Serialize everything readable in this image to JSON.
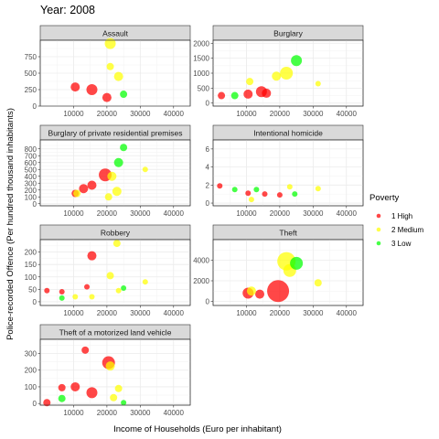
{
  "chart_data": {
    "type": "scatter",
    "title": "Year: 2008",
    "xlabel": "Income of Households (Euro per inhabitant)",
    "ylabel": "Police-recorded Offence (Per hundred thousand inhabitants)",
    "xlim": [
      0,
      45000
    ],
    "x_ticks": [
      10000,
      20000,
      30000,
      40000
    ],
    "grid": true,
    "legend": {
      "title": "Poverty",
      "position": "right",
      "entries": [
        {
          "key": "1",
          "label": "1 High",
          "color": "#ff0000"
        },
        {
          "key": "2",
          "label": "2 Medium",
          "color": "#ffff00"
        },
        {
          "key": "3",
          "label": "3 Low",
          "color": "#00ff00"
        }
      ]
    },
    "panels": [
      {
        "name": "Assault",
        "ylim": [
          0,
          1000
        ],
        "y_ticks": [
          0,
          250,
          500,
          750
        ],
        "points": [
          {
            "x": 10500,
            "y": 290,
            "group": "1",
            "size": 5
          },
          {
            "x": 15500,
            "y": 250,
            "group": "1",
            "size": 6
          },
          {
            "x": 20000,
            "y": 130,
            "group": "1",
            "size": 5
          },
          {
            "x": 21000,
            "y": 950,
            "group": "2",
            "size": 6
          },
          {
            "x": 21000,
            "y": 600,
            "group": "2",
            "size": 4
          },
          {
            "x": 23500,
            "y": 450,
            "group": "2",
            "size": 5
          },
          {
            "x": 25000,
            "y": 180,
            "group": "3",
            "size": 4
          }
        ]
      },
      {
        "name": "Burglary",
        "ylim": [
          -100,
          2100
        ],
        "y_ticks": [
          0,
          500,
          1000,
          1500,
          2000
        ],
        "points": [
          {
            "x": 2500,
            "y": 250,
            "group": "1",
            "size": 4
          },
          {
            "x": 10500,
            "y": 300,
            "group": "1",
            "size": 5
          },
          {
            "x": 14500,
            "y": 380,
            "group": "1",
            "size": 6
          },
          {
            "x": 16000,
            "y": 330,
            "group": "1",
            "size": 5
          },
          {
            "x": 11000,
            "y": 720,
            "group": "2",
            "size": 4
          },
          {
            "x": 19000,
            "y": 900,
            "group": "2",
            "size": 5
          },
          {
            "x": 22000,
            "y": 1000,
            "group": "2",
            "size": 7
          },
          {
            "x": 31500,
            "y": 650,
            "group": "2",
            "size": 3
          },
          {
            "x": 6500,
            "y": 250,
            "group": "3",
            "size": 4
          },
          {
            "x": 25000,
            "y": 1420,
            "group": "3",
            "size": 6
          }
        ]
      },
      {
        "name": "Burglary of private residential premises",
        "ylim": [
          -30,
          930
        ],
        "y_ticks": [
          0,
          100,
          200,
          300,
          400,
          500,
          600,
          700,
          800
        ],
        "points": [
          {
            "x": 10500,
            "y": 150,
            "group": "1",
            "size": 4
          },
          {
            "x": 13000,
            "y": 220,
            "group": "1",
            "size": 5
          },
          {
            "x": 15500,
            "y": 270,
            "group": "1",
            "size": 5
          },
          {
            "x": 19500,
            "y": 420,
            "group": "1",
            "size": 7
          },
          {
            "x": 11000,
            "y": 150,
            "group": "2",
            "size": 4
          },
          {
            "x": 20500,
            "y": 100,
            "group": "2",
            "size": 4
          },
          {
            "x": 21500,
            "y": 400,
            "group": "2",
            "size": 5
          },
          {
            "x": 23000,
            "y": 180,
            "group": "2",
            "size": 5
          },
          {
            "x": 31500,
            "y": 500,
            "group": "2",
            "size": 3
          },
          {
            "x": 23500,
            "y": 600,
            "group": "3",
            "size": 5
          },
          {
            "x": 25000,
            "y": 820,
            "group": "3",
            "size": 4
          }
        ]
      },
      {
        "name": "Intentional homicide",
        "ylim": [
          -0.3,
          7
        ],
        "y_ticks": [
          0,
          2,
          4,
          6
        ],
        "points": [
          {
            "x": 2000,
            "y": 1.9,
            "group": "1",
            "size": 3
          },
          {
            "x": 10500,
            "y": 1.1,
            "group": "1",
            "size": 3
          },
          {
            "x": 15500,
            "y": 1.0,
            "group": "1",
            "size": 3
          },
          {
            "x": 20000,
            "y": 0.9,
            "group": "1",
            "size": 3
          },
          {
            "x": 11500,
            "y": 0.4,
            "group": "2",
            "size": 3
          },
          {
            "x": 23000,
            "y": 1.8,
            "group": "2",
            "size": 3
          },
          {
            "x": 31500,
            "y": 1.6,
            "group": "2",
            "size": 3
          },
          {
            "x": 6500,
            "y": 1.5,
            "group": "3",
            "size": 3
          },
          {
            "x": 13000,
            "y": 1.5,
            "group": "3",
            "size": 3
          },
          {
            "x": 24500,
            "y": 1.0,
            "group": "3",
            "size": 3
          }
        ]
      },
      {
        "name": "Robbery",
        "ylim": [
          -15,
          250
        ],
        "y_ticks": [
          0,
          50,
          100,
          150,
          200
        ],
        "points": [
          {
            "x": 2000,
            "y": 45,
            "group": "1",
            "size": 3
          },
          {
            "x": 6500,
            "y": 40,
            "group": "1",
            "size": 3
          },
          {
            "x": 14000,
            "y": 60,
            "group": "1",
            "size": 3
          },
          {
            "x": 15500,
            "y": 185,
            "group": "1",
            "size": 5
          },
          {
            "x": 10500,
            "y": 20,
            "group": "2",
            "size": 3
          },
          {
            "x": 15500,
            "y": 20,
            "group": "2",
            "size": 3
          },
          {
            "x": 21000,
            "y": 105,
            "group": "2",
            "size": 4
          },
          {
            "x": 23500,
            "y": 45,
            "group": "2",
            "size": 3
          },
          {
            "x": 23000,
            "y": 235,
            "group": "2",
            "size": 4
          },
          {
            "x": 31500,
            "y": 80,
            "group": "2",
            "size": 3
          },
          {
            "x": 6500,
            "y": 15,
            "group": "3",
            "size": 3
          },
          {
            "x": 25000,
            "y": 55,
            "group": "3",
            "size": 3
          }
        ]
      },
      {
        "name": "Theft",
        "ylim": [
          -400,
          6000
        ],
        "y_ticks": [
          0,
          2000,
          4000
        ],
        "points": [
          {
            "x": 10500,
            "y": 800,
            "group": "1",
            "size": 6
          },
          {
            "x": 14000,
            "y": 700,
            "group": "1",
            "size": 5
          },
          {
            "x": 19500,
            "y": 1000,
            "group": "1",
            "size": 12
          },
          {
            "x": 11500,
            "y": 1000,
            "group": "2",
            "size": 5
          },
          {
            "x": 22000,
            "y": 3900,
            "group": "2",
            "size": 10
          },
          {
            "x": 23000,
            "y": 3000,
            "group": "2",
            "size": 7
          },
          {
            "x": 31500,
            "y": 1800,
            "group": "2",
            "size": 4
          },
          {
            "x": 25000,
            "y": 3700,
            "group": "3",
            "size": 7
          }
        ]
      },
      {
        "name": "Theft of a motorized land vehicle",
        "ylim": [
          -10,
          385
        ],
        "y_ticks": [
          0,
          100,
          200,
          300
        ],
        "points": [
          {
            "x": 2000,
            "y": 5,
            "group": "1",
            "size": 4
          },
          {
            "x": 6500,
            "y": 95,
            "group": "1",
            "size": 4
          },
          {
            "x": 10500,
            "y": 100,
            "group": "1",
            "size": 5
          },
          {
            "x": 13500,
            "y": 320,
            "group": "1",
            "size": 4
          },
          {
            "x": 15500,
            "y": 65,
            "group": "1",
            "size": 6
          },
          {
            "x": 20500,
            "y": 245,
            "group": "1",
            "size": 7
          },
          {
            "x": 21000,
            "y": 225,
            "group": "2",
            "size": 5
          },
          {
            "x": 22000,
            "y": 35,
            "group": "2",
            "size": 4
          },
          {
            "x": 23500,
            "y": 90,
            "group": "2",
            "size": 4
          },
          {
            "x": 6500,
            "y": 30,
            "group": "3",
            "size": 4
          },
          {
            "x": 25000,
            "y": 5,
            "group": "3",
            "size": 3
          }
        ]
      }
    ]
  }
}
